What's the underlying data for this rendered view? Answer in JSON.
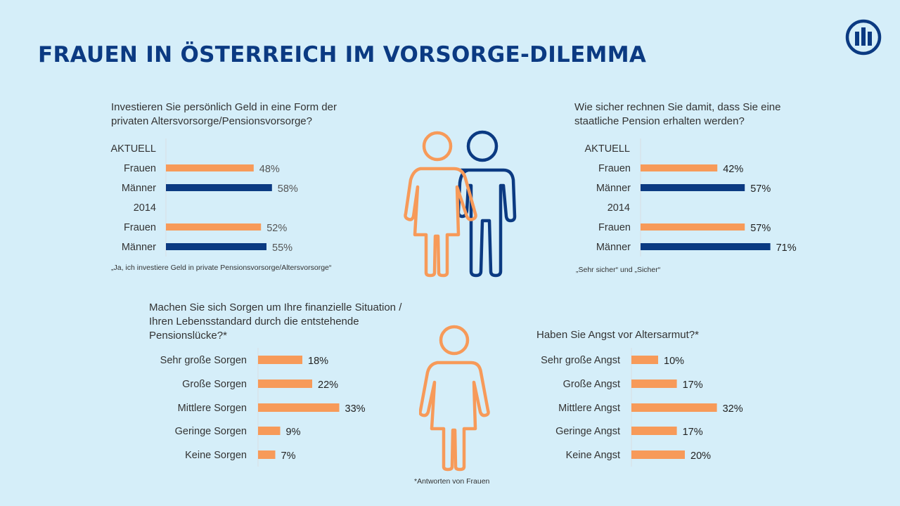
{
  "title": "FRAUEN IN ÖSTERREICH IM VORSORGE-DILEMMA",
  "icons": {
    "logo": "allianz-logo-icon",
    "woman": "woman-icon",
    "man": "man-icon"
  },
  "colors": {
    "women": "#f79a59",
    "men": "#0b3a82",
    "title": "#0b3a82",
    "background": "#d5eef9"
  },
  "footnote": "*Antworten von Frauen",
  "chart_data": [
    {
      "type": "bar",
      "question": "Investieren Sie persönlich Geld in eine Form der privaten Altersvorsorge/Pensionsvorsorge?",
      "note": "„Ja, ich investiere Geld in private Pensionsvorsorge/Altersvorsorge“",
      "unit": "%",
      "groups": [
        {
          "label": "AKTUELL",
          "rows": [
            {
              "label": "Frauen",
              "series": "women",
              "value": 48
            },
            {
              "label": "Männer",
              "series": "men",
              "value": 58
            }
          ]
        },
        {
          "label": "2014",
          "rows": [
            {
              "label": "Frauen",
              "series": "women",
              "value": 52
            },
            {
              "label": "Männer",
              "series": "men",
              "value": 55
            }
          ]
        }
      ]
    },
    {
      "type": "bar",
      "question": "Wie sicher rechnen Sie damit, dass Sie eine staatliche Pension erhalten werden?",
      "note": "„Sehr sicher“ und „Sicher“",
      "unit": "%",
      "groups": [
        {
          "label": "AKTUELL",
          "rows": [
            {
              "label": "Frauen",
              "series": "women",
              "value": 42
            },
            {
              "label": "Männer",
              "series": "men",
              "value": 57
            }
          ]
        },
        {
          "label": "2014",
          "rows": [
            {
              "label": "Frauen",
              "series": "women",
              "value": 57
            },
            {
              "label": "Männer",
              "series": "men",
              "value": 71
            }
          ]
        }
      ]
    },
    {
      "type": "bar",
      "question": "Machen Sie sich Sorgen um Ihre finanzielle Situation / Ihren Lebensstandard durch die entstehende Pensionslücke?*",
      "unit": "%",
      "categories": [
        "Sehr große Sorgen",
        "Große Sorgen",
        "Mittlere Sorgen",
        "Geringe Sorgen",
        "Keine Sorgen"
      ],
      "values": [
        18,
        22,
        33,
        9,
        7
      ]
    },
    {
      "type": "bar",
      "question": "Haben Sie Angst vor Altersarmut?*",
      "unit": "%",
      "categories": [
        "Sehr große Angst",
        "Große Angst",
        "Mittlere Angst",
        "Geringe Angst",
        "Keine Angst"
      ],
      "values": [
        10,
        17,
        32,
        17,
        20
      ]
    }
  ]
}
